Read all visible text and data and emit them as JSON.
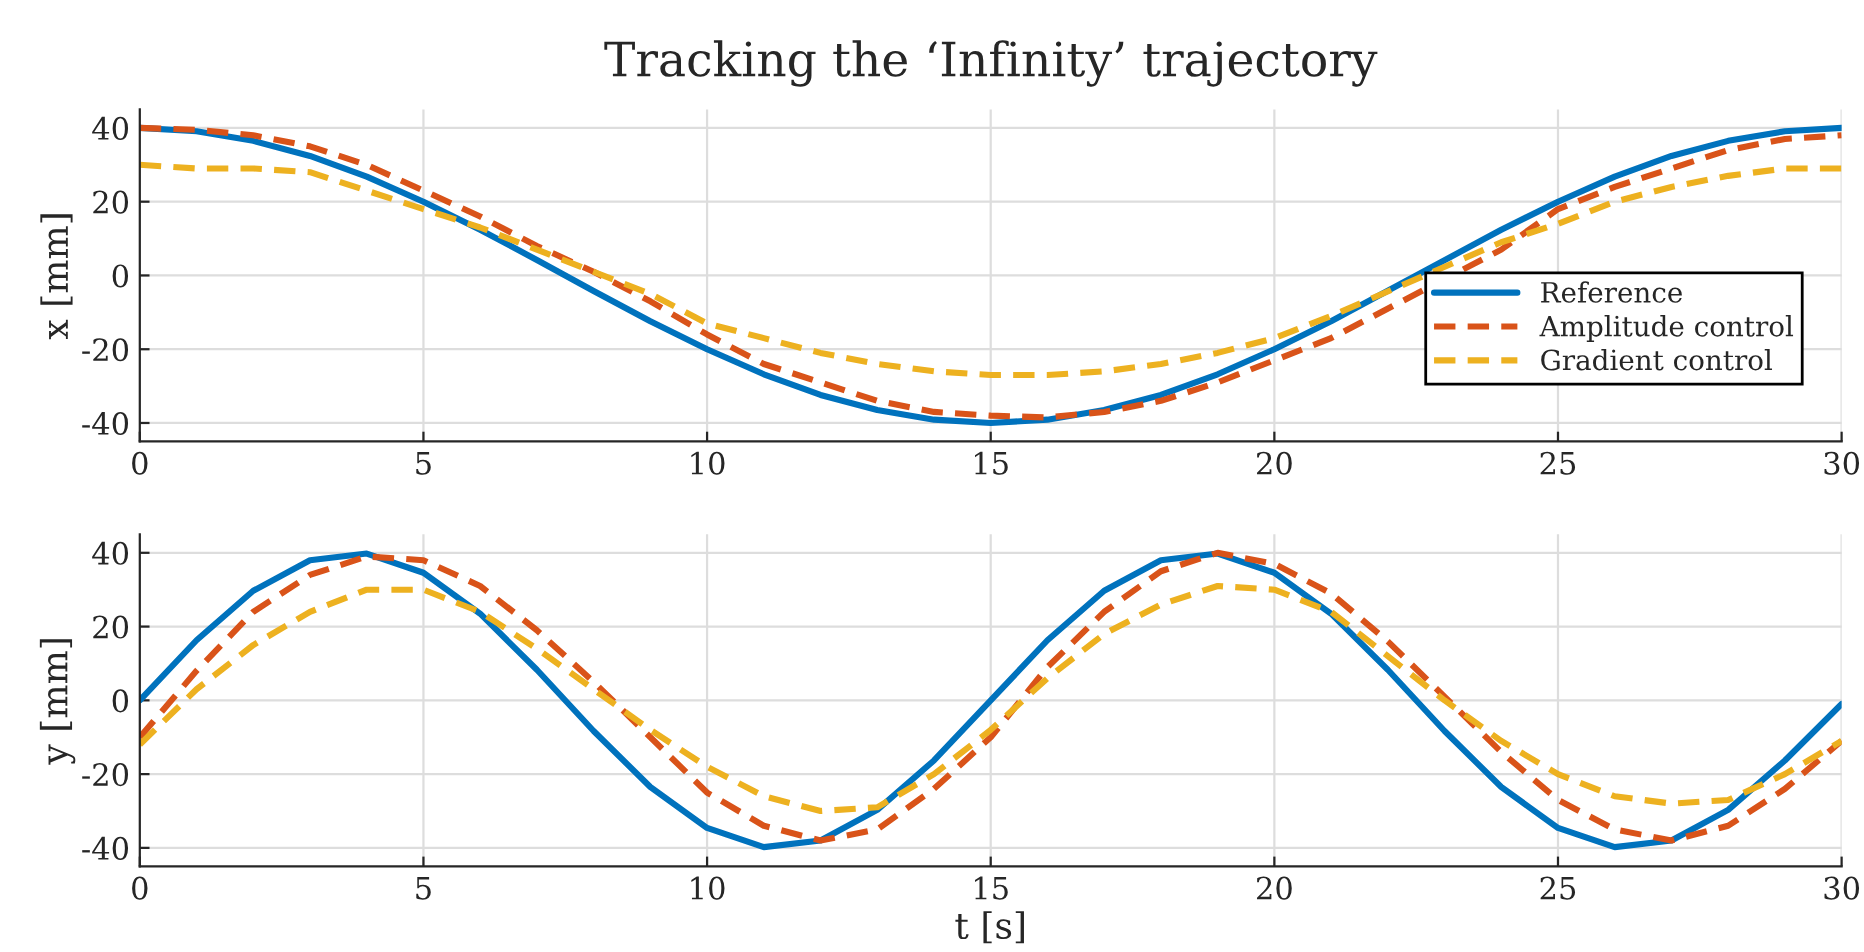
{
  "chart_data": [
    {
      "type": "line",
      "title": "Tracking the ‘Infinity’ trajectory",
      "ylabel": "x [mm]",
      "x": [
        0,
        1,
        2,
        3,
        4,
        5,
        6,
        7,
        8,
        9,
        10,
        11,
        12,
        13,
        14,
        15,
        16,
        17,
        18,
        19,
        20,
        21,
        22,
        23,
        24,
        25,
        26,
        27,
        28,
        29,
        30
      ],
      "series": [
        {
          "name": "Reference",
          "color": "#0072bd",
          "line_style": "solid",
          "values": [
            40,
            39.1,
            36.5,
            32.4,
            26.8,
            20,
            12.4,
            4.2,
            -4.2,
            -12.4,
            -20,
            -26.8,
            -32.4,
            -36.5,
            -39.1,
            -40,
            -39.1,
            -36.5,
            -32.4,
            -26.8,
            -20,
            -12.4,
            null,
            null,
            12.4,
            20,
            26.8,
            32.4,
            36.5,
            39.1,
            40
          ]
        },
        {
          "name": "Amplitude control",
          "color": "#d95319",
          "line_style": "dashed",
          "values": [
            40,
            39.5,
            38,
            35,
            30,
            23,
            16,
            8,
            1,
            -7,
            -16,
            -24,
            -29,
            -34,
            -37,
            -38,
            -38.5,
            -37,
            -34,
            -29,
            -23,
            -17,
            null,
            null,
            7,
            18,
            24,
            29,
            34,
            37,
            38
          ]
        },
        {
          "name": "Gradient control",
          "color": "#edb120",
          "line_style": "dashed",
          "values": [
            30,
            29,
            29,
            28,
            23,
            18,
            13,
            7,
            1,
            -5,
            -13,
            -17,
            -21,
            -24,
            -26,
            -27,
            -27,
            -26,
            -24,
            -21,
            -17,
            -11,
            null,
            null,
            9,
            14,
            20,
            24,
            27,
            29,
            29
          ]
        }
      ],
      "xlim": [
        0,
        30
      ],
      "ylim": [
        -45,
        45
      ],
      "xticks": [
        0,
        5,
        10,
        15,
        20,
        25,
        30
      ],
      "yticks": [
        -40,
        -20,
        0,
        20,
        40
      ],
      "grid": true,
      "legend": "right"
    },
    {
      "type": "line",
      "ylabel": "y [mm]",
      "xlabel": "t [s]",
      "x": [
        0,
        1,
        2,
        3,
        4,
        5,
        6,
        7,
        8,
        9,
        10,
        11,
        12,
        13,
        14,
        15,
        16,
        17,
        18,
        19,
        20,
        21,
        22,
        23,
        24,
        25,
        26,
        27,
        28,
        29,
        30
      ],
      "series": [
        {
          "color": "#0072bd",
          "line_style": "solid",
          "values": [
            0,
            16.3,
            29.7,
            38,
            39.8,
            34.6,
            23.5,
            8.3,
            -8.3,
            -23.5,
            -34.6,
            -39.8,
            -38,
            -29.7,
            -16.3,
            0,
            16.3,
            29.7,
            38,
            39.8,
            34.6,
            23.5,
            8.3,
            -8.3,
            -23.5,
            -34.6,
            -39.8,
            -38,
            -29.7,
            -16.3,
            -1
          ]
        },
        {
          "color": "#d95319",
          "line_style": "dashed",
          "values": [
            -10,
            8,
            24,
            34,
            39,
            38,
            31,
            19,
            5,
            -10,
            -25,
            -34,
            -38,
            -35,
            -24,
            -10,
            9,
            24,
            35,
            40,
            37,
            29,
            16,
            1,
            -14,
            -27,
            -35,
            -38,
            -34,
            -24,
            -11
          ]
        },
        {
          "color": "#edb120",
          "line_style": "dashed",
          "values": [
            -12,
            3,
            15,
            24,
            30,
            30,
            24,
            14,
            3,
            -8,
            -18,
            -26,
            -30,
            -29,
            -20,
            -8,
            6,
            18,
            26,
            31,
            30,
            24,
            12,
            0,
            -11,
            -20,
            -26,
            -28,
            -27,
            -20,
            -11
          ]
        }
      ],
      "xlim": [
        0,
        30
      ],
      "ylim": [
        -45,
        45
      ],
      "xticks": [
        0,
        5,
        10,
        15,
        20,
        25,
        30
      ],
      "yticks": [
        -40,
        -20,
        0,
        20,
        40
      ],
      "grid": true
    }
  ]
}
